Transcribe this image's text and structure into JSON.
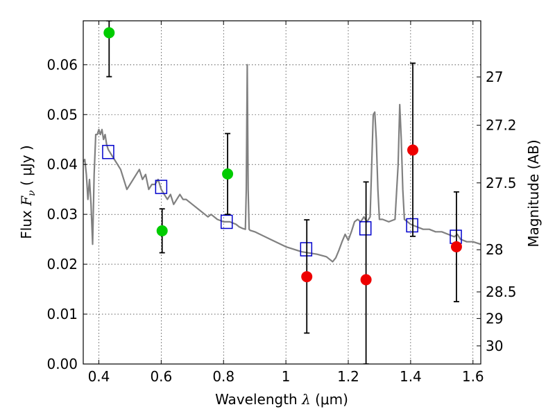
{
  "chart_data": {
    "type": "scatter",
    "title": "",
    "xlabel_prefix": "Wavelength  ",
    "xlabel_symbol": "λ",
    "xlabel_unit": " (μm)",
    "ylabel_prefix": "Flux  ",
    "ylabel_symbol": "F",
    "ylabel_subscript": "ν",
    "ylabel_unit": "  ( μJy )",
    "ylabel_right": "Magnitude (AB)",
    "xlim": [
      0.35,
      1.625
    ],
    "ylim": [
      0.0,
      0.0688
    ],
    "grid": true,
    "x_ticks": [
      0.4,
      0.6,
      0.8,
      1.0,
      1.2,
      1.4,
      1.6
    ],
    "x_tick_labels": [
      "0.4",
      "0.6",
      "0.8",
      "1",
      "1.2",
      "1.4",
      "1.6"
    ],
    "y_ticks": [
      0.0,
      0.01,
      0.02,
      0.03,
      0.04,
      0.05,
      0.06
    ],
    "y_tick_labels": [
      "0.00",
      "0.01",
      "0.02",
      "0.03",
      "0.04",
      "0.05",
      "0.06"
    ],
    "right_ticks": [
      {
        "mag": 27.0,
        "label": "27"
      },
      {
        "mag": 27.2,
        "label": "27.2"
      },
      {
        "mag": 27.5,
        "label": "27.5"
      },
      {
        "mag": 28.0,
        "label": "28"
      },
      {
        "mag": 28.5,
        "label": "28.5"
      },
      {
        "mag": 29.0,
        "label": "29"
      },
      {
        "mag": 30.0,
        "label": "30"
      }
    ],
    "series": [
      {
        "name": "model-sed",
        "kind": "line",
        "color": "#808080",
        "x": [
          0.35,
          0.355,
          0.36,
          0.365,
          0.37,
          0.375,
          0.38,
          0.385,
          0.39,
          0.395,
          0.4,
          0.405,
          0.41,
          0.415,
          0.42,
          0.425,
          0.43,
          0.44,
          0.45,
          0.46,
          0.47,
          0.48,
          0.49,
          0.5,
          0.51,
          0.52,
          0.53,
          0.54,
          0.55,
          0.56,
          0.57,
          0.58,
          0.59,
          0.6,
          0.61,
          0.62,
          0.63,
          0.64,
          0.65,
          0.66,
          0.67,
          0.68,
          0.7,
          0.72,
          0.74,
          0.75,
          0.76,
          0.78,
          0.8,
          0.82,
          0.84,
          0.85,
          0.86,
          0.87,
          0.873,
          0.876,
          0.879,
          0.882,
          0.885,
          0.9,
          0.95,
          1.0,
          1.05,
          1.1,
          1.13,
          1.15,
          1.16,
          1.17,
          1.18,
          1.19,
          1.2,
          1.21,
          1.22,
          1.23,
          1.24,
          1.25,
          1.26,
          1.27,
          1.28,
          1.285,
          1.29,
          1.295,
          1.3,
          1.31,
          1.33,
          1.35,
          1.36,
          1.365,
          1.37,
          1.375,
          1.38,
          1.39,
          1.4,
          1.42,
          1.44,
          1.46,
          1.48,
          1.5,
          1.52,
          1.54,
          1.55,
          1.56,
          1.58,
          1.6,
          1.625
        ],
        "y": [
          0.0405,
          0.041,
          0.038,
          0.033,
          0.037,
          0.032,
          0.024,
          0.038,
          0.046,
          0.046,
          0.047,
          0.046,
          0.047,
          0.045,
          0.046,
          0.044,
          0.043,
          0.042,
          0.041,
          0.04,
          0.039,
          0.037,
          0.035,
          0.036,
          0.037,
          0.038,
          0.039,
          0.037,
          0.038,
          0.035,
          0.036,
          0.036,
          0.037,
          0.035,
          0.034,
          0.033,
          0.034,
          0.032,
          0.033,
          0.034,
          0.033,
          0.033,
          0.032,
          0.031,
          0.03,
          0.0295,
          0.03,
          0.029,
          0.0285,
          0.0285,
          0.028,
          0.0275,
          0.0272,
          0.027,
          0.035,
          0.06,
          0.035,
          0.027,
          0.0268,
          0.0265,
          0.025,
          0.0235,
          0.0225,
          0.022,
          0.0215,
          0.0205,
          0.0213,
          0.0228,
          0.0245,
          0.026,
          0.0248,
          0.0265,
          0.0285,
          0.029,
          0.0285,
          0.0295,
          0.0285,
          0.0295,
          0.05,
          0.0505,
          0.045,
          0.035,
          0.029,
          0.029,
          0.0285,
          0.029,
          0.04,
          0.052,
          0.045,
          0.035,
          0.029,
          0.0285,
          0.028,
          0.0275,
          0.027,
          0.027,
          0.0265,
          0.0265,
          0.026,
          0.0255,
          0.026,
          0.025,
          0.0245,
          0.0245,
          0.024
        ]
      },
      {
        "name": "model-bandpass-flux",
        "kind": "square",
        "color": "#0000cc",
        "x": [
          0.43,
          0.6,
          0.81,
          1.065,
          1.255,
          1.405,
          1.545
        ],
        "y": [
          0.0425,
          0.0355,
          0.0285,
          0.023,
          0.0272,
          0.0278,
          0.0255
        ]
      },
      {
        "name": "observed-green",
        "kind": "point",
        "color": "#00cc00",
        "x": [
          0.433,
          0.603,
          0.813
        ],
        "y": [
          0.0664,
          0.0267,
          0.0381
        ],
        "err_low": [
          0.0576,
          0.0223,
          0.03
        ],
        "err_high": [
          0.0688,
          0.0311,
          0.0462
        ]
      },
      {
        "name": "observed-red",
        "kind": "point",
        "color": "#ee0000",
        "x": [
          1.067,
          1.257,
          1.407,
          1.547
        ],
        "y": [
          0.0175,
          0.0169,
          0.0429,
          0.0235
        ],
        "err_low": [
          0.0062,
          0.0,
          0.0256,
          0.0125
        ],
        "err_high": [
          0.0289,
          0.0365,
          0.0603,
          0.0345
        ]
      }
    ]
  }
}
